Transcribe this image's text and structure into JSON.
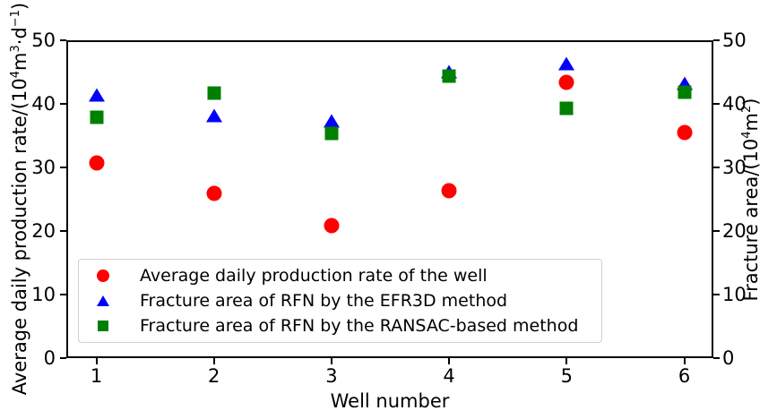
{
  "chart_data": {
    "type": "scatter",
    "x": [
      1,
      2,
      3,
      4,
      5,
      6
    ],
    "xlabel": "Well number",
    "ylabel_left": "Average daily production rate/(10⁴m³·d⁻¹)",
    "ylabel_left_parts": {
      "p1": "Average daily production rate/(10",
      "s1": "4",
      "p2": "m",
      "s2": "3",
      "p3": "·d",
      "s3": "−1",
      "p4": ")"
    },
    "ylabel_right": "Fracture area/(10⁴m²)",
    "ylabel_right_parts": {
      "p1": "Fracture area/(10",
      "s1": "4",
      "p2": "m",
      "s2": "2",
      "p3": ")"
    },
    "ylim_left": [
      0,
      50
    ],
    "ylim_right": [
      0,
      50
    ],
    "yticks": [
      0,
      10,
      20,
      30,
      40,
      50
    ],
    "grid": false,
    "legend_position": "lower left",
    "series": [
      {
        "name": "Average daily production rate of the well",
        "marker": "circle",
        "color": "#ff0000",
        "axis": "left",
        "values": [
          30.7,
          25.9,
          20.8,
          26.3,
          43.4,
          35.5
        ]
      },
      {
        "name": "Fracture area of RFN by the EFR3D method",
        "marker": "triangle",
        "color": "#0000ff",
        "axis": "right",
        "values": [
          41.4,
          38.2,
          37.3,
          45.1,
          46.3,
          43.2
        ]
      },
      {
        "name": "Fracture area of RFN by the RANSAC-based method",
        "marker": "square",
        "color": "#008000",
        "axis": "right",
        "values": [
          37.9,
          41.7,
          35.4,
          44.4,
          39.3,
          41.8
        ]
      }
    ]
  }
}
